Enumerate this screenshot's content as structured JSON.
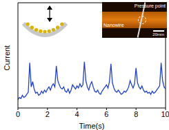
{
  "chart_data": {
    "type": "line",
    "x_label": "Time(s)",
    "y_label": "Current",
    "x": [
      0,
      0.1,
      0.2,
      0.3,
      0.4,
      0.5,
      0.6,
      0.7,
      0.8,
      0.9,
      1.0,
      1.1,
      1.2,
      1.3,
      1.4,
      1.5,
      1.6,
      1.7,
      1.8,
      1.9,
      2.0,
      2.1,
      2.2,
      2.3,
      2.4,
      2.5,
      2.6,
      2.7,
      2.8,
      2.9,
      3.0,
      3.1,
      3.2,
      3.3,
      3.4,
      3.5,
      3.6,
      3.7,
      3.8,
      3.9,
      4.0,
      4.1,
      4.2,
      4.3,
      4.4,
      4.5,
      4.6,
      4.7,
      4.8,
      4.9,
      5.0,
      5.1,
      5.2,
      5.3,
      5.4,
      5.5,
      5.6,
      5.7,
      5.8,
      5.9,
      6.0,
      6.1,
      6.2,
      6.3,
      6.4,
      6.5,
      6.6,
      6.7,
      6.8,
      6.9,
      7.0,
      7.1,
      7.2,
      7.3,
      7.4,
      7.5,
      7.6,
      7.7,
      7.8,
      7.9,
      8.0,
      8.1,
      8.2,
      8.3,
      8.4,
      8.5,
      8.6,
      8.7,
      8.8,
      8.9,
      9.0,
      9.1,
      9.2,
      9.3,
      9.4,
      9.5,
      9.6,
      9.7,
      9.8,
      9.9,
      10.0
    ],
    "values": [
      0.8,
      1.0,
      0.9,
      1.2,
      1.0,
      1.1,
      1.3,
      1.5,
      4.3,
      2.0,
      2.5,
      1.8,
      1.4,
      1.5,
      1.2,
      1.3,
      1.6,
      1.4,
      1.7,
      1.5,
      1.8,
      2.0,
      1.7,
      2.1,
      2.3,
      2.0,
      4.0,
      2.6,
      2.2,
      1.9,
      1.8,
      2.0,
      1.6,
      1.5,
      1.8,
      1.4,
      1.7,
      2.2,
      2.0,
      1.8,
      2.1,
      1.9,
      2.3,
      2.0,
      2.2,
      4.4,
      2.6,
      2.0,
      1.7,
      2.2,
      2.5,
      2.0,
      1.6,
      1.5,
      1.7,
      1.4,
      1.3,
      1.6,
      1.8,
      2.0,
      2.2,
      1.9,
      2.5,
      4.2,
      2.4,
      1.9,
      1.6,
      1.5,
      1.7,
      1.5,
      1.3,
      1.4,
      1.6,
      1.5,
      1.7,
      2.0,
      2.6,
      2.2,
      1.9,
      2.3,
      3.8,
      2.4,
      2.0,
      1.8,
      2.1,
      1.7,
      1.5,
      1.6,
      1.4,
      1.5,
      1.3,
      1.6,
      1.4,
      1.5,
      1.7,
      1.9,
      2.1,
      4.3,
      2.6,
      2.0,
      1.8
    ],
    "color": "#1f3fd8",
    "xlim": [
      0,
      10
    ],
    "xticks": [
      0,
      2,
      4,
      6,
      8,
      10
    ],
    "ylim": [
      0,
      10
    ],
    "tick_labels": "x",
    "annotations": [
      "Pressure point",
      "Nanowire",
      "20mm"
    ]
  }
}
